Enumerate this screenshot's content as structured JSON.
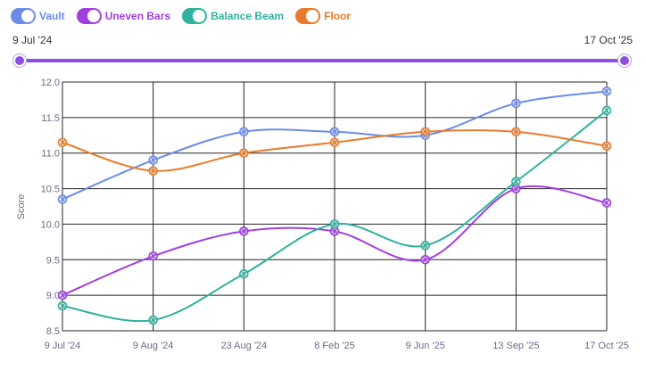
{
  "legend": {
    "items": [
      {
        "label": "Vault",
        "color": "#6b8bea"
      },
      {
        "label": "Uneven Bars",
        "color": "#a03fe0"
      },
      {
        "label": "Balance Beam",
        "color": "#30b2a0"
      },
      {
        "label": "Floor",
        "color": "#e87a2c"
      }
    ]
  },
  "range": {
    "start_label": "9 Jul '24",
    "end_label": "17 Oct '25"
  },
  "chart_data": {
    "type": "line",
    "x": [
      "9 Jul '24",
      "9 Aug '24",
      "23 Aug '24",
      "8 Feb '25",
      "9 Jun '25",
      "13 Sep '25",
      "17 Oct '25"
    ],
    "ylabel": "Score",
    "ylim": [
      8.5,
      12.0
    ],
    "yticks": [
      "12.0",
      "11.5",
      "11.0",
      "10.5",
      "10.0",
      "9.5",
      "9.0",
      "8.5"
    ],
    "grid": true,
    "legend_position": "top-left",
    "series": [
      {
        "name": "Vault",
        "color": "#6b8bea",
        "values": [
          10.35,
          10.9,
          11.3,
          11.3,
          11.25,
          11.7,
          11.87
        ]
      },
      {
        "name": "Uneven Bars",
        "color": "#a03fe0",
        "values": [
          9.0,
          9.55,
          9.9,
          9.9,
          9.5,
          10.5,
          10.3
        ]
      },
      {
        "name": "Balance Beam",
        "color": "#30b2a0",
        "values": [
          8.85,
          8.65,
          9.3,
          10.0,
          9.7,
          10.6,
          11.6
        ]
      },
      {
        "name": "Floor",
        "color": "#e87a2c",
        "values": [
          11.15,
          10.75,
          11.0,
          11.15,
          11.3,
          11.3,
          11.1
        ]
      }
    ]
  }
}
